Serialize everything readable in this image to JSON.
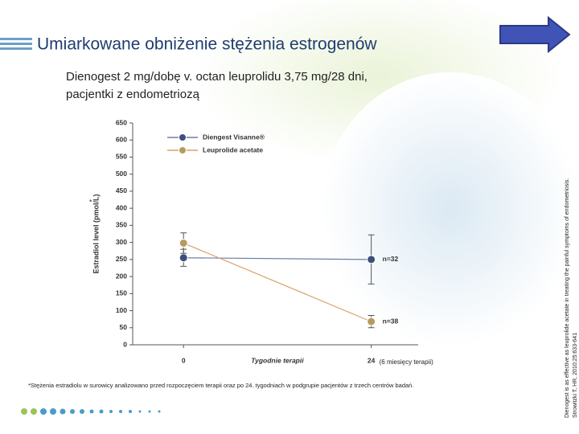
{
  "slide_title": "Umiarkowane obniżenie stężenia estrogenów",
  "subtitle_lines": [
    "Dienogest 2 mg/dobę v. octan leuprolidu 3,75 mg/28 dni,",
    "pacjentki z endometriozą"
  ],
  "footnote": "*Stężenia estradiolu w surowicy analizowano przed rozpoczęciem terapii oraz po 24. tygodniach w podgrupie pacjentów z trzech centrów badań.",
  "side_notes": [
    "Dienogest is as effective as leuprolide acetate in treating the painful symptoms of endometriosis.",
    "Strowitzki T, HR, 2010;25:633-641"
  ],
  "chart_data": {
    "type": "line",
    "y_label": "Estradiol level (pmol/L)",
    "y_label_mark": "*",
    "x_label": "Tygodnie terapii",
    "x_note": "(6 miesięcy terapii)",
    "x": [
      0,
      24
    ],
    "xlim": [
      -6.5,
      30
    ],
    "xticks": [
      0,
      24
    ],
    "ylim": [
      0,
      650
    ],
    "yticks": [
      0,
      50,
      100,
      150,
      200,
      250,
      300,
      350,
      400,
      450,
      500,
      550,
      600,
      650
    ],
    "series": [
      {
        "name": "Diengest Visanne®",
        "color": "#3d4f7c",
        "line_color": "#6f7ea6",
        "values": [
          255,
          250
        ],
        "errors": [
          25,
          72
        ],
        "n_label": "n=32"
      },
      {
        "name": "Leuprolide acetate",
        "color": "#b89a5e",
        "line_color": "#d9a36a",
        "values": [
          298,
          68
        ],
        "errors": [
          30,
          18
        ],
        "n_label": "n=38"
      }
    ],
    "legend": "upper left"
  }
}
